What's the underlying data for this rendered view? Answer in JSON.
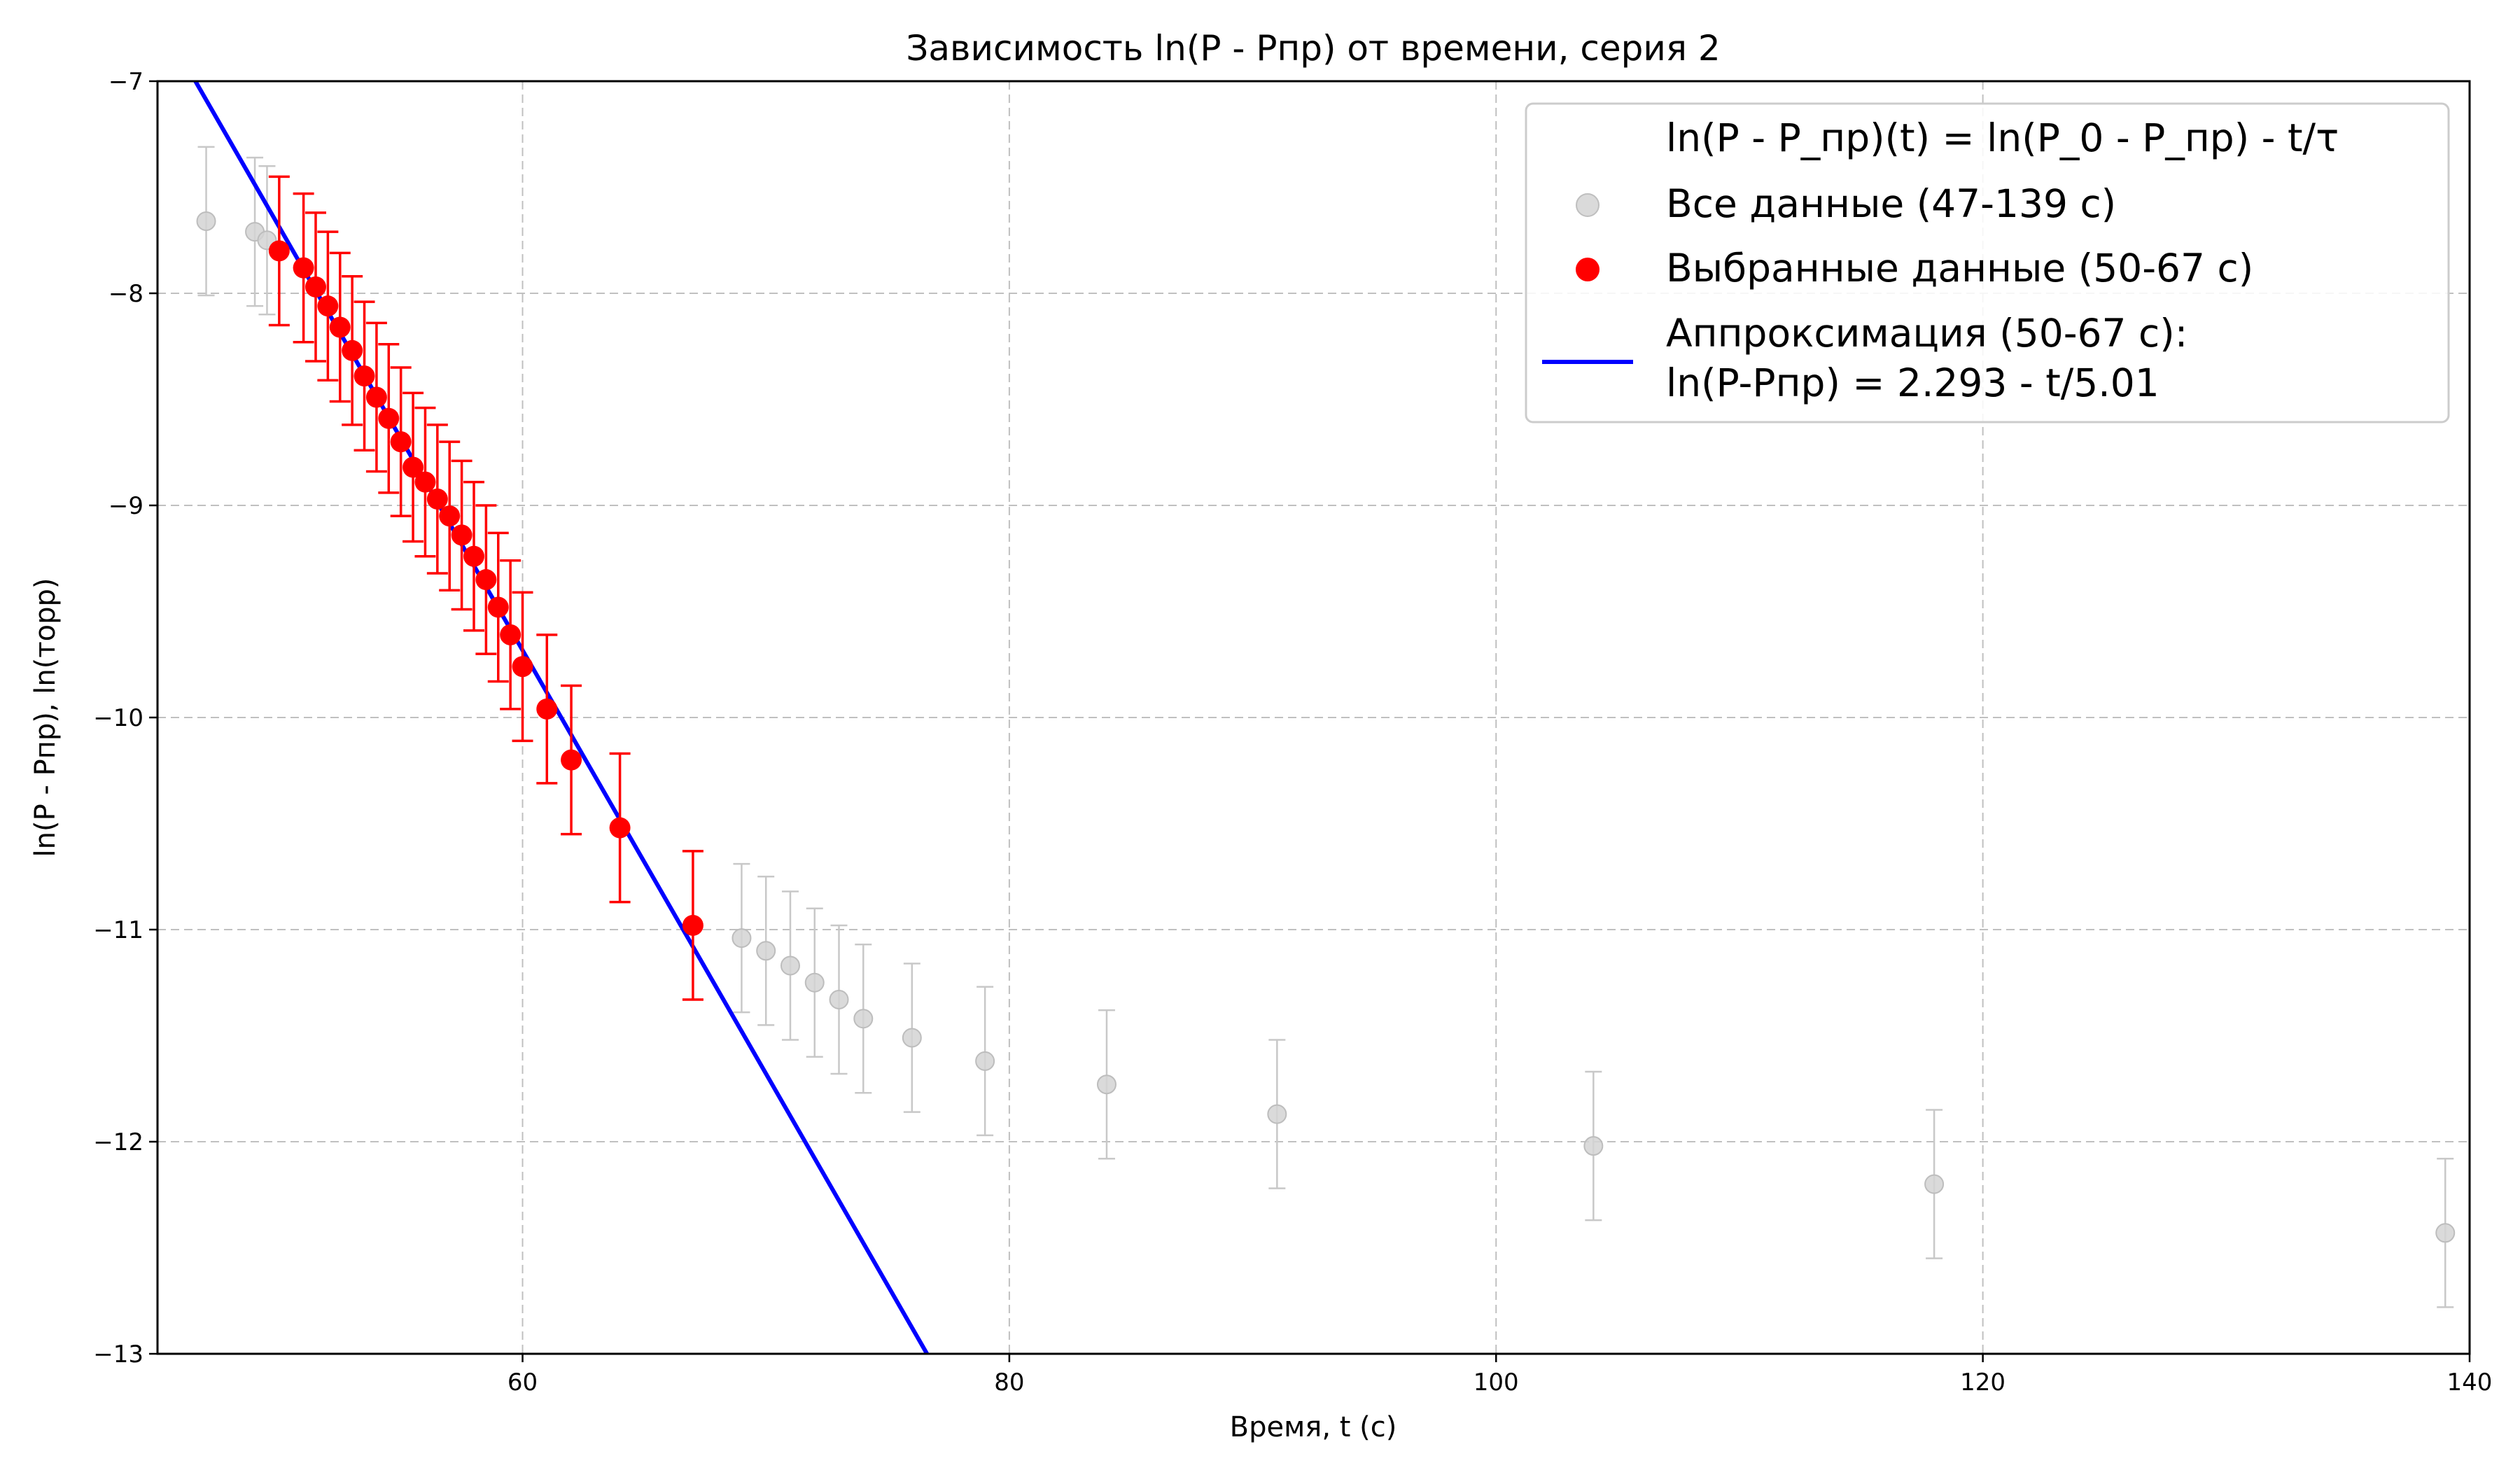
{
  "chart_data": {
    "type": "scatter",
    "title": "Зависимость ln(P - Pпр) от времени, серия 2",
    "xlabel": "Время, t (с)",
    "ylabel": "ln(P - Pпр), ln(торр)",
    "xlim": [
      45,
      140
    ],
    "ylim": [
      -13,
      -7
    ],
    "xticks": [
      60,
      80,
      100,
      120,
      140
    ],
    "yticks": [
      -13,
      -12,
      -11,
      -10,
      -9,
      -8,
      -7
    ],
    "grid": true,
    "legend_position": "top-right",
    "legend": {
      "formula_label": "ln(P - P_пр)(t) = ln(P_0 - P_пр) - t/τ",
      "all_label": "Все данные (47-139 с)",
      "selected_label": "Выбранные данные (50-67 с)",
      "fit_label_line1": "Аппроксимация (50-67 с):",
      "fit_label_line2": "ln(P-Pпр) = 2.293 - t/5.01"
    },
    "error_bar_half_width": 0.35,
    "series": [
      {
        "name": "Все данные (47-139 с)",
        "color": "#d3d3d3",
        "points": [
          [
            47,
            -7.66
          ],
          [
            49,
            -7.71
          ],
          [
            49.5,
            -7.75
          ],
          [
            50,
            -7.8
          ],
          [
            51,
            -7.88
          ],
          [
            51.5,
            -7.97
          ],
          [
            52,
            -8.06
          ],
          [
            52.5,
            -8.16
          ],
          [
            53,
            -8.27
          ],
          [
            53.5,
            -8.39
          ],
          [
            54,
            -8.49
          ],
          [
            54.5,
            -8.59
          ],
          [
            55,
            -8.7
          ],
          [
            55.5,
            -8.82
          ],
          [
            56,
            -8.89
          ],
          [
            56.5,
            -8.97
          ],
          [
            57,
            -9.05
          ],
          [
            57.5,
            -9.14
          ],
          [
            58,
            -9.24
          ],
          [
            58.5,
            -9.35
          ],
          [
            59,
            -9.48
          ],
          [
            59.5,
            -9.61
          ],
          [
            60,
            -9.76
          ],
          [
            61,
            -9.96
          ],
          [
            62,
            -10.2
          ],
          [
            64,
            -10.52
          ],
          [
            67,
            -10.98
          ],
          [
            69,
            -11.04
          ],
          [
            70,
            -11.1
          ],
          [
            71,
            -11.17
          ],
          [
            72,
            -11.25
          ],
          [
            73,
            -11.33
          ],
          [
            74,
            -11.42
          ],
          [
            76,
            -11.51
          ],
          [
            79,
            -11.62
          ],
          [
            84,
            -11.73
          ],
          [
            91,
            -11.87
          ],
          [
            104,
            -12.02
          ],
          [
            118,
            -12.2
          ],
          [
            139,
            -12.43
          ]
        ]
      },
      {
        "name": "Выбранные данные (50-67 с)",
        "color": "#ff0000",
        "points": [
          [
            50,
            -7.8
          ],
          [
            51,
            -7.88
          ],
          [
            51.5,
            -7.97
          ],
          [
            52,
            -8.06
          ],
          [
            52.5,
            -8.16
          ],
          [
            53,
            -8.27
          ],
          [
            53.5,
            -8.39
          ],
          [
            54,
            -8.49
          ],
          [
            54.5,
            -8.59
          ],
          [
            55,
            -8.7
          ],
          [
            55.5,
            -8.82
          ],
          [
            56,
            -8.89
          ],
          [
            56.5,
            -8.97
          ],
          [
            57,
            -9.05
          ],
          [
            57.5,
            -9.14
          ],
          [
            58,
            -9.24
          ],
          [
            58.5,
            -9.35
          ],
          [
            59,
            -9.48
          ],
          [
            59.5,
            -9.61
          ],
          [
            60,
            -9.76
          ],
          [
            61,
            -9.96
          ],
          [
            62,
            -10.2
          ],
          [
            64,
            -10.52
          ],
          [
            67,
            -10.98
          ]
        ]
      }
    ],
    "fit": {
      "name": "Аппроксимация (50-67 с)",
      "color": "#0000ff",
      "intercept": 2.293,
      "tau": 5.01
    }
  }
}
